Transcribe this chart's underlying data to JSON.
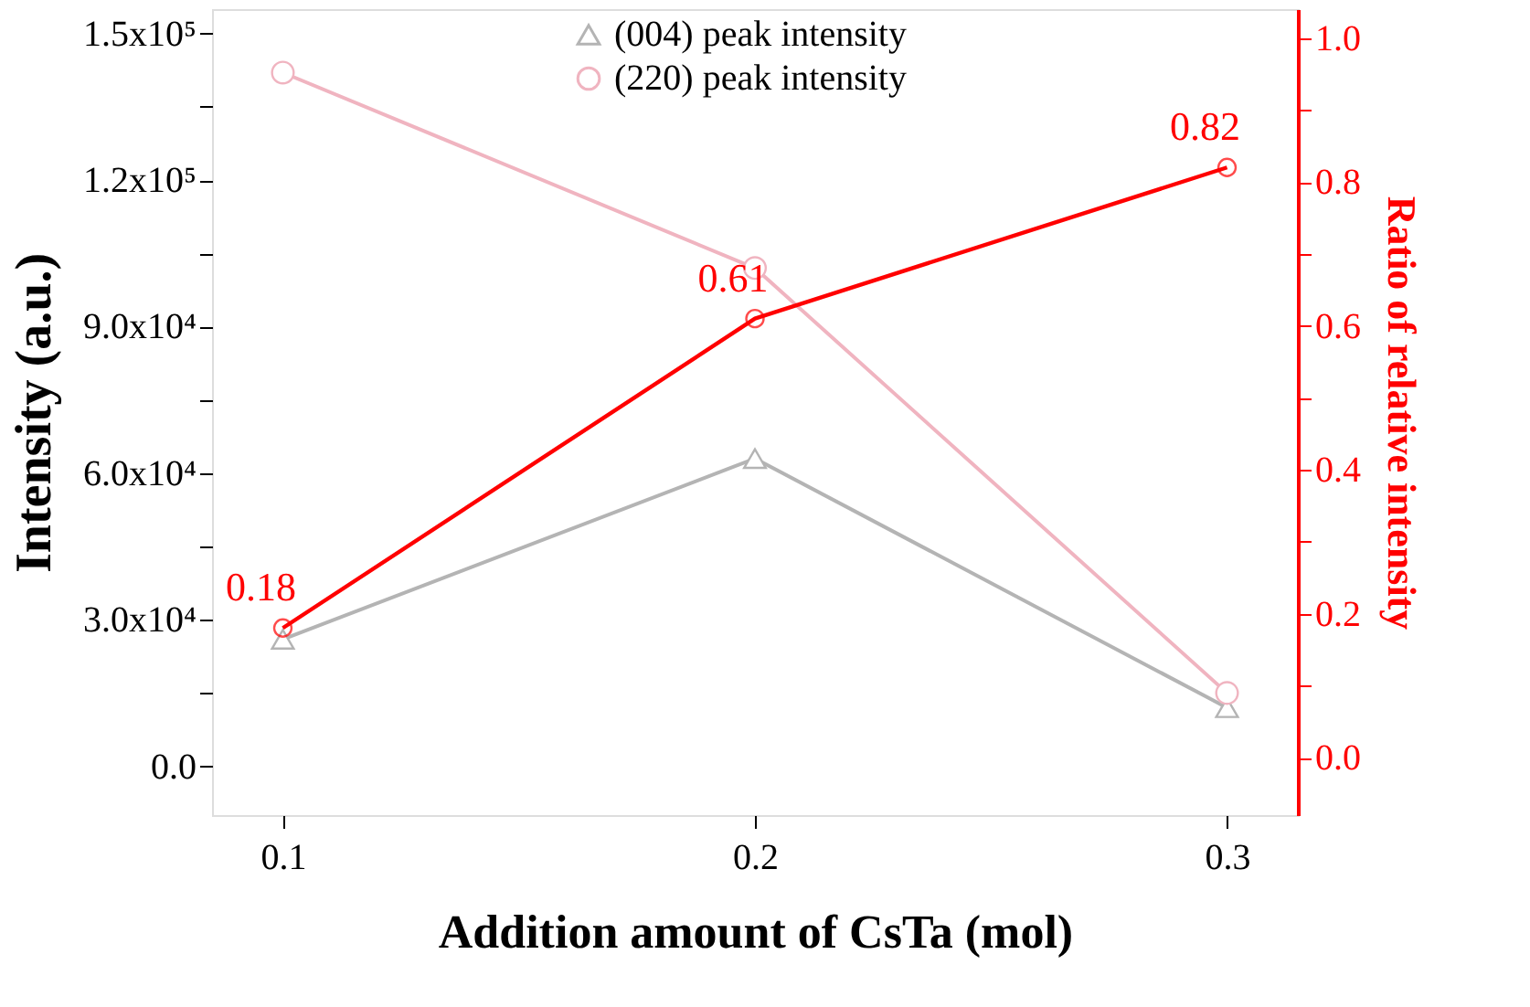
{
  "chart_data": {
    "type": "line",
    "xlabel": "Addition amount of CsTa (mol)",
    "ylabel": "Intensity (a.u.)",
    "y2label": "Ratio of relative intensity",
    "x": [
      0.1,
      0.2,
      0.3
    ],
    "xlim": [
      0.085,
      0.315
    ],
    "xticks": [
      0.1,
      0.2,
      0.3
    ],
    "ylim": [
      -10000,
      155000
    ],
    "yticks": [
      {
        "value": 0,
        "label": "0.0"
      },
      {
        "value": 15000,
        "label": null
      },
      {
        "value": 30000,
        "label": "3.0x10⁴"
      },
      {
        "value": 45000,
        "label": null
      },
      {
        "value": 60000,
        "label": "6.0x10⁴"
      },
      {
        "value": 75000,
        "label": null
      },
      {
        "value": 90000,
        "label": "9.0x10⁴"
      },
      {
        "value": 105000,
        "label": null
      },
      {
        "value": 120000,
        "label": "1.2x10⁵"
      },
      {
        "value": 135000,
        "label": null
      },
      {
        "value": 150000,
        "label": "1.5x10⁵"
      }
    ],
    "y2lim": [
      -0.08,
      1.04
    ],
    "y2ticks": [
      {
        "value": 0,
        "label": "0.0"
      },
      {
        "value": 0.1,
        "label": null
      },
      {
        "value": 0.2,
        "label": "0.2"
      },
      {
        "value": 0.3,
        "label": null
      },
      {
        "value": 0.4,
        "label": "0.4"
      },
      {
        "value": 0.5,
        "label": null
      },
      {
        "value": 0.6,
        "label": "0.6"
      },
      {
        "value": 0.7,
        "label": null
      },
      {
        "value": 0.8,
        "label": "0.8"
      },
      {
        "value": 0.9,
        "label": null
      },
      {
        "value": 1.0,
        "label": "1.0"
      }
    ],
    "grid": false,
    "legend": "top",
    "line_style": "solid",
    "series": [
      {
        "name": "(004) peak intensity",
        "color": "#b4b4b4",
        "marker": "triangle",
        "values": [
          26000,
          63000,
          12000
        ]
      },
      {
        "name": "(220) peak intensity",
        "color": "#f0b4c0",
        "marker": "circle",
        "values": [
          142000,
          102000,
          15000
        ]
      },
      {
        "color": "#ff0000",
        "marker": "circle",
        "axis": "y2",
        "values": [
          0.18,
          0.61,
          0.82
        ],
        "value_labels": [
          "0.18",
          "0.61",
          "0.82"
        ]
      }
    ]
  }
}
